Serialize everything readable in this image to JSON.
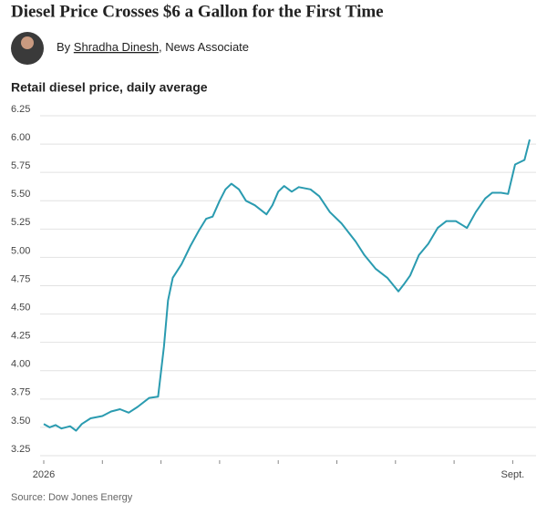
{
  "header": {
    "title": "Diesel Price Crosses $6 a Gallon for the First Time",
    "byline": {
      "prefix": "By",
      "author": "Shradha Dinesh",
      "role": ", News Associate"
    }
  },
  "chart_data": {
    "type": "line",
    "title": "Retail diesel price, daily average",
    "source": "Source: Dow Jones Energy",
    "xlim": [
      0,
      8.3
    ],
    "xticks": [
      {
        "value": 0,
        "label": "2026"
      },
      {
        "value": 1,
        "label": null
      },
      {
        "value": 2,
        "label": null
      },
      {
        "value": 3,
        "label": null
      },
      {
        "value": 4,
        "label": null
      },
      {
        "value": 5,
        "label": null
      },
      {
        "value": 6,
        "label": null
      },
      {
        "value": 7,
        "label": null
      },
      {
        "value": 8,
        "label": "Sept."
      }
    ],
    "ylim": [
      3.25,
      6.25
    ],
    "yticks": [
      3.25,
      {
        "value": 3.5,
        "label": "3.50"
      },
      3.75,
      {
        "value": 4,
        "label": "4.00"
      },
      4.25,
      {
        "value": 4.5,
        "label": "4.50"
      },
      4.75,
      {
        "value": 5,
        "label": "5.00"
      },
      5.25,
      {
        "value": 5.5,
        "label": "5.50"
      },
      5.75,
      {
        "value": 6,
        "label": "6.00"
      },
      6.25
    ],
    "grid": true,
    "series": [
      {
        "name": "Retail diesel price",
        "color": "#2a9bb0",
        "x": [
          0,
          0.1,
          0.2,
          0.3,
          0.45,
          0.55,
          0.65,
          0.8,
          1.0,
          1.15,
          1.3,
          1.45,
          1.6,
          1.8,
          1.95,
          2.05,
          2.12,
          2.2,
          2.35,
          2.5,
          2.65,
          2.77,
          2.88,
          3.0,
          3.1,
          3.2,
          3.33,
          3.45,
          3.6,
          3.8,
          3.9,
          4.0,
          4.1,
          4.23,
          4.35,
          4.55,
          4.7,
          4.88,
          5.08,
          5.32,
          5.47,
          5.66,
          5.86,
          6.05,
          6.14,
          6.25,
          6.4,
          6.56,
          6.72,
          6.87,
          7.03,
          7.22,
          7.37,
          7.53,
          7.65,
          7.8,
          7.92,
          8.04,
          8.2,
          8.29
        ],
        "values": [
          3.53,
          3.5,
          3.52,
          3.49,
          3.51,
          3.47,
          3.53,
          3.58,
          3.6,
          3.64,
          3.66,
          3.63,
          3.68,
          3.76,
          3.77,
          4.21,
          4.62,
          4.82,
          4.94,
          5.1,
          5.24,
          5.34,
          5.36,
          5.5,
          5.6,
          5.65,
          5.6,
          5.5,
          5.46,
          5.38,
          5.46,
          5.58,
          5.63,
          5.58,
          5.62,
          5.6,
          5.54,
          5.4,
          5.3,
          5.14,
          5.02,
          4.9,
          4.82,
          4.7,
          4.76,
          4.84,
          5.02,
          5.12,
          5.26,
          5.32,
          5.32,
          5.26,
          5.4,
          5.52,
          5.57,
          5.57,
          5.56,
          5.82,
          5.86,
          6.04
        ]
      }
    ]
  }
}
